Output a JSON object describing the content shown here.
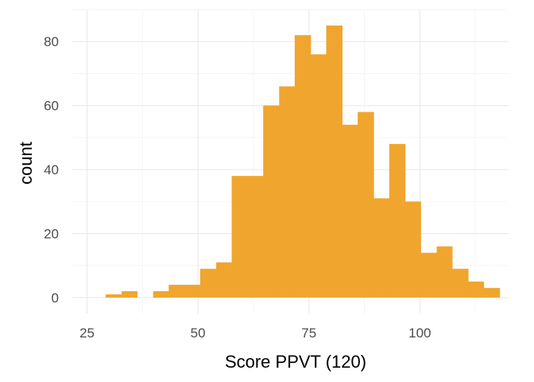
{
  "chart_data": {
    "type": "bar",
    "subtype": "histogram",
    "xlabel": "Score PPVT (120)",
    "ylabel": "count",
    "xlim": [
      21.5,
      120
    ],
    "ylim": [
      -5,
      90
    ],
    "x_ticks": [
      25,
      50,
      75,
      100
    ],
    "x_tick_labels": [
      "25",
      "50",
      "75",
      "100"
    ],
    "y_ticks": [
      0,
      20,
      40,
      60,
      80
    ],
    "y_tick_labels": [
      "0",
      "20",
      "40",
      "60",
      "80"
    ],
    "grid": true,
    "legend": "none",
    "bar_color": "#F0A52E",
    "bins": [
      {
        "x0": 29.2,
        "x1": 32.8,
        "count": 1
      },
      {
        "x0": 32.8,
        "x1": 36.3,
        "count": 2
      },
      {
        "x0": 36.3,
        "x1": 39.9,
        "count": 0
      },
      {
        "x0": 39.9,
        "x1": 43.4,
        "count": 2
      },
      {
        "x0": 43.4,
        "x1": 47.0,
        "count": 4
      },
      {
        "x0": 47.0,
        "x1": 50.5,
        "count": 4
      },
      {
        "x0": 50.5,
        "x1": 54.1,
        "count": 9
      },
      {
        "x0": 54.1,
        "x1": 57.6,
        "count": 11
      },
      {
        "x0": 57.6,
        "x1": 61.2,
        "count": 38
      },
      {
        "x0": 61.2,
        "x1": 64.7,
        "count": 38
      },
      {
        "x0": 64.7,
        "x1": 68.3,
        "count": 60
      },
      {
        "x0": 68.3,
        "x1": 71.8,
        "count": 66
      },
      {
        "x0": 71.8,
        "x1": 75.4,
        "count": 82
      },
      {
        "x0": 75.4,
        "x1": 78.9,
        "count": 76
      },
      {
        "x0": 78.9,
        "x1": 82.5,
        "count": 85
      },
      {
        "x0": 82.5,
        "x1": 86.0,
        "count": 54
      },
      {
        "x0": 86.0,
        "x1": 89.6,
        "count": 58
      },
      {
        "x0": 89.6,
        "x1": 93.1,
        "count": 31
      },
      {
        "x0": 93.1,
        "x1": 96.7,
        "count": 48
      },
      {
        "x0": 96.7,
        "x1": 100.2,
        "count": 30
      },
      {
        "x0": 100.2,
        "x1": 103.8,
        "count": 14
      },
      {
        "x0": 103.8,
        "x1": 107.3,
        "count": 16
      },
      {
        "x0": 107.3,
        "x1": 110.9,
        "count": 9
      },
      {
        "x0": 110.9,
        "x1": 114.4,
        "count": 5
      },
      {
        "x0": 114.4,
        "x1": 118.0,
        "count": 3
      }
    ]
  }
}
